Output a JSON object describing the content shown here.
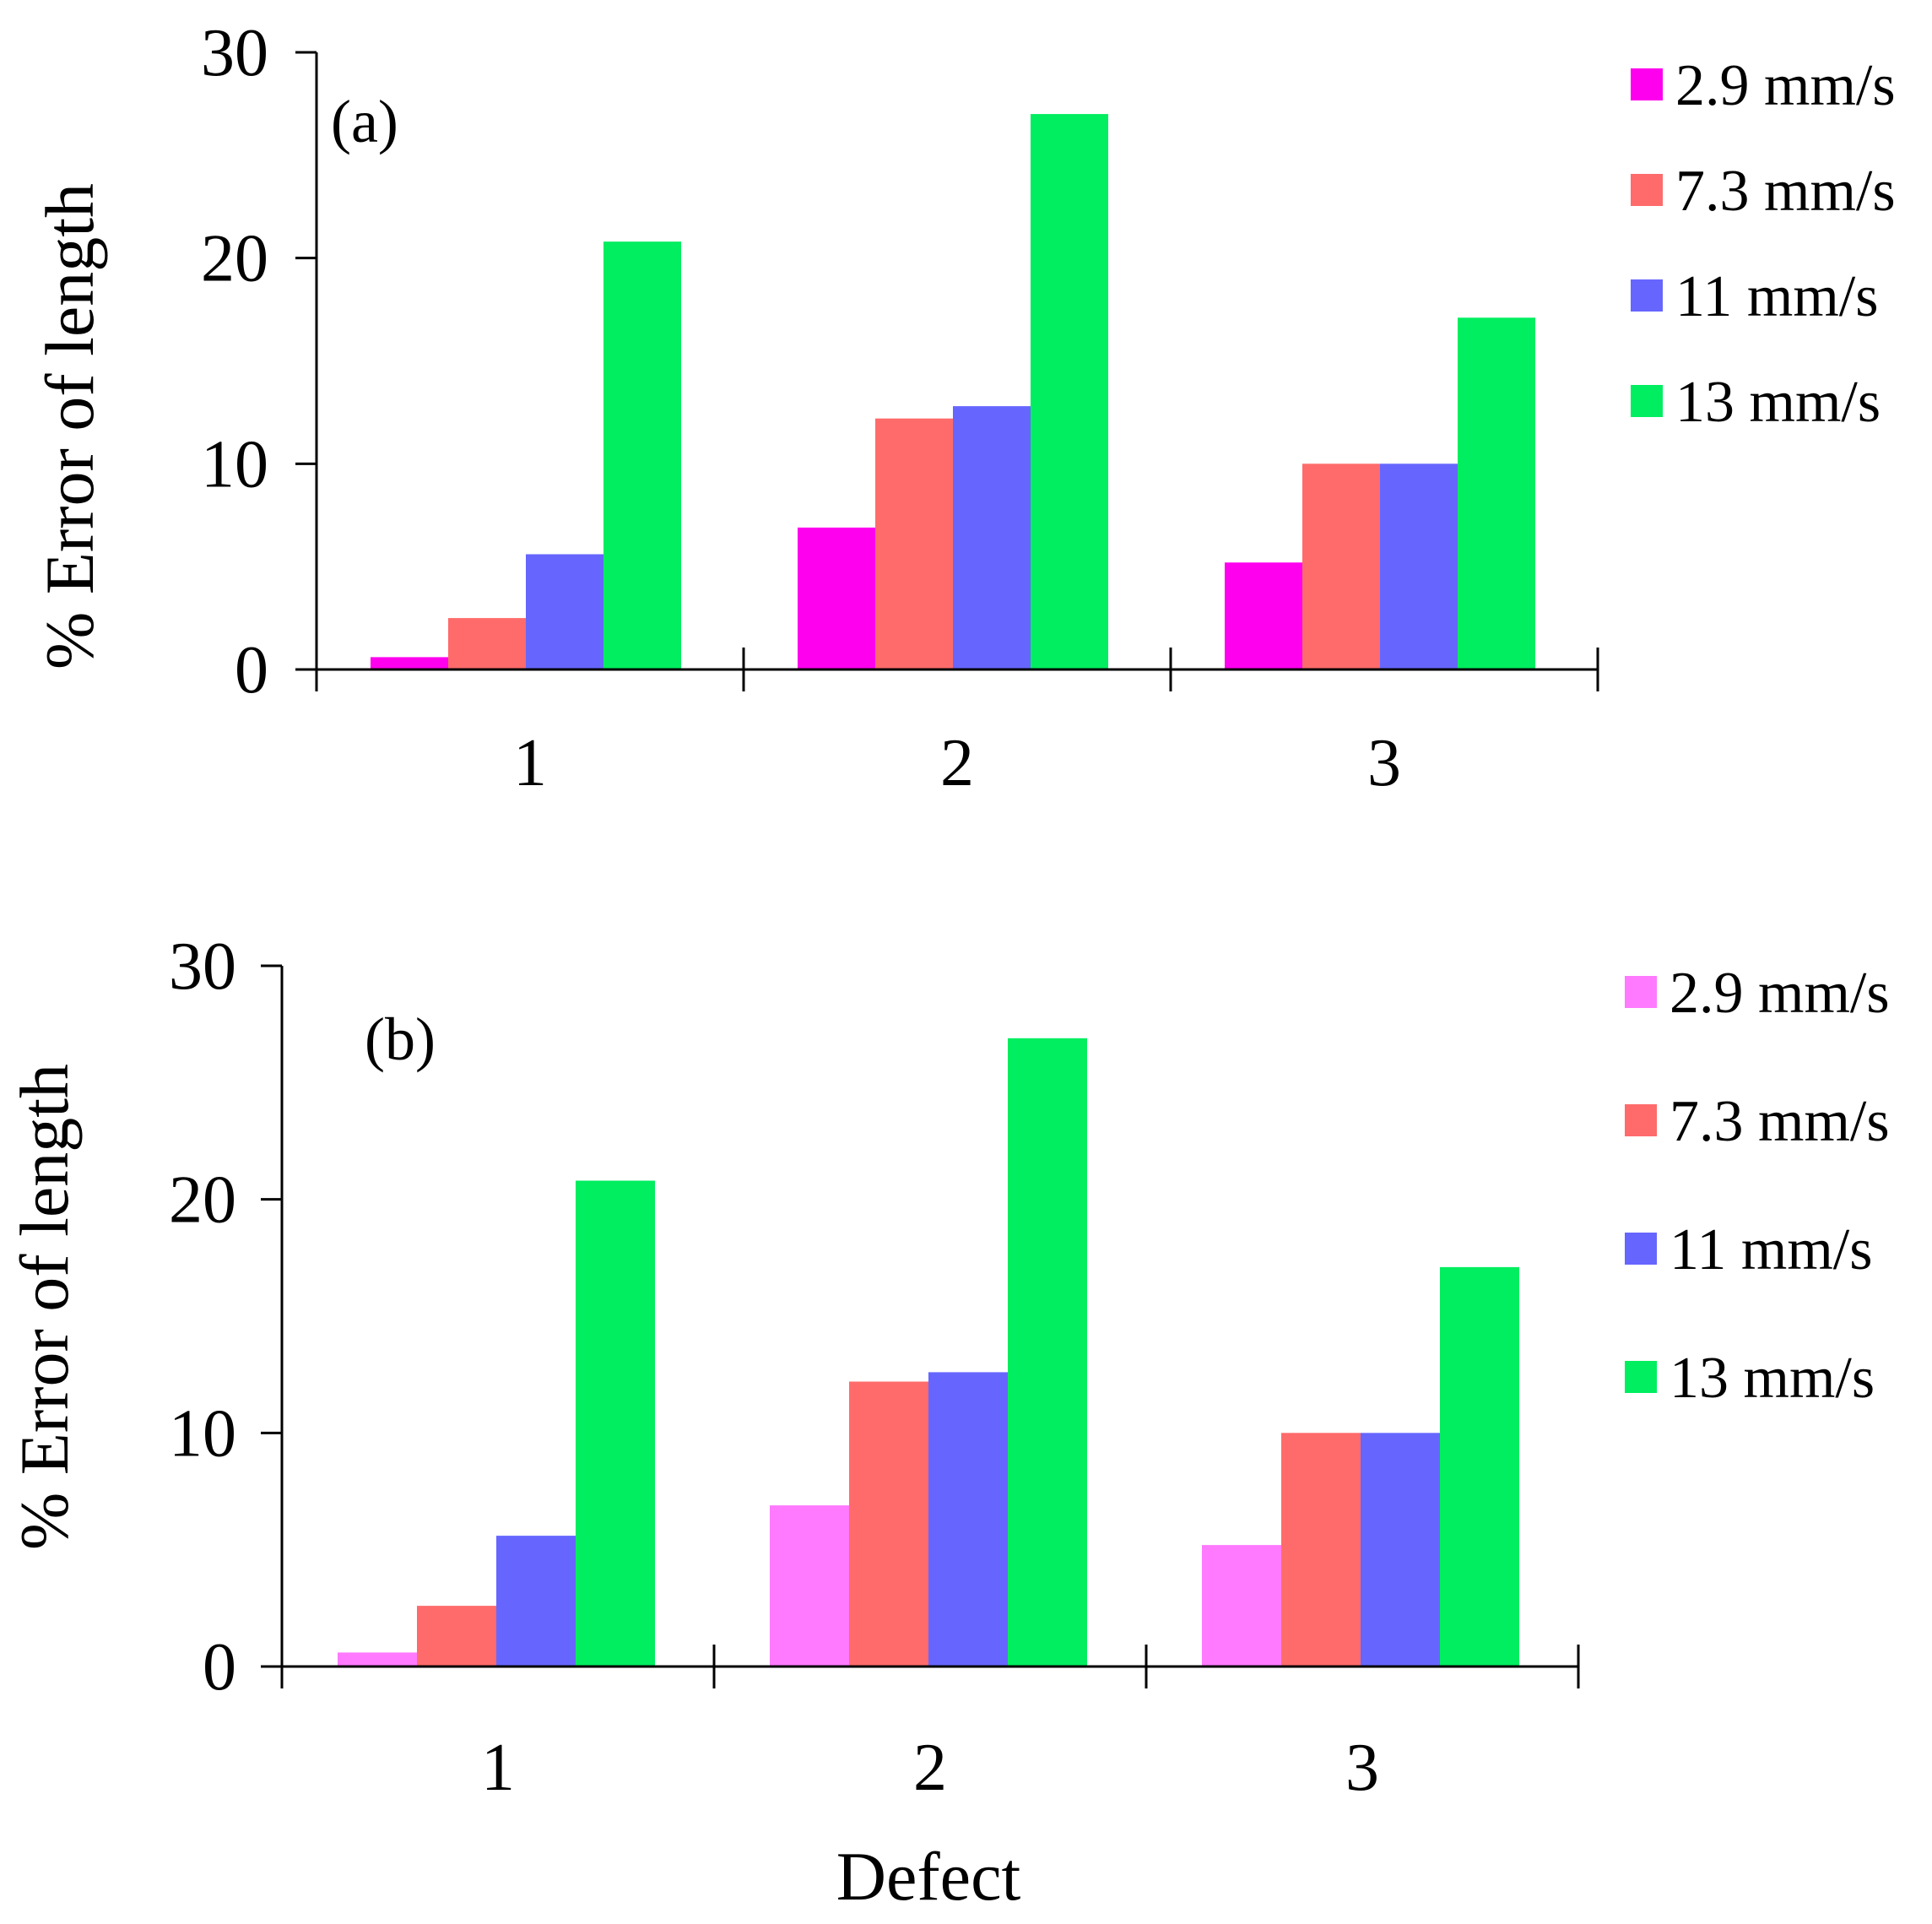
{
  "chart_data": [
    {
      "type": "bar",
      "panel_label": "(a)",
      "ylabel": "% Error of length",
      "xlabel": "",
      "categories": [
        "1",
        "2",
        "3"
      ],
      "ylim": [
        0,
        30
      ],
      "yticks": [
        "0",
        "10",
        "20",
        "30"
      ],
      "legend_position": "right",
      "series": [
        {
          "name": "2.9 mm/s",
          "color": "#ff00ee",
          "values": [
            0.6,
            6.9,
            5.2
          ]
        },
        {
          "name": "7.3 mm/s",
          "color": "#ff6b6b",
          "values": [
            2.5,
            12.2,
            10.0
          ]
        },
        {
          "name": "11 mm/s",
          "color": "#6666ff",
          "values": [
            5.6,
            12.8,
            10.0
          ]
        },
        {
          "name": "13 mm/s",
          "color": "#00ee5f",
          "values": [
            20.8,
            27.0,
            17.1
          ]
        }
      ]
    },
    {
      "type": "bar",
      "panel_label": "(b)",
      "ylabel": "% Error of length",
      "xlabel": "Defect",
      "categories": [
        "1",
        "2",
        "3"
      ],
      "ylim": [
        0,
        30
      ],
      "yticks": [
        "0",
        "10",
        "20",
        "30"
      ],
      "legend_position": "right",
      "series": [
        {
          "name": "2.9 mm/s",
          "color": "#ff7aff",
          "values": [
            0.6,
            6.9,
            5.2
          ]
        },
        {
          "name": "7.3 mm/s",
          "color": "#ff6b6b",
          "values": [
            2.6,
            12.2,
            10.0
          ]
        },
        {
          "name": "11 mm/s",
          "color": "#6666ff",
          "values": [
            5.6,
            12.6,
            10.0
          ]
        },
        {
          "name": "13 mm/s",
          "color": "#00ee5f",
          "values": [
            20.8,
            26.9,
            17.1
          ]
        }
      ]
    }
  ]
}
